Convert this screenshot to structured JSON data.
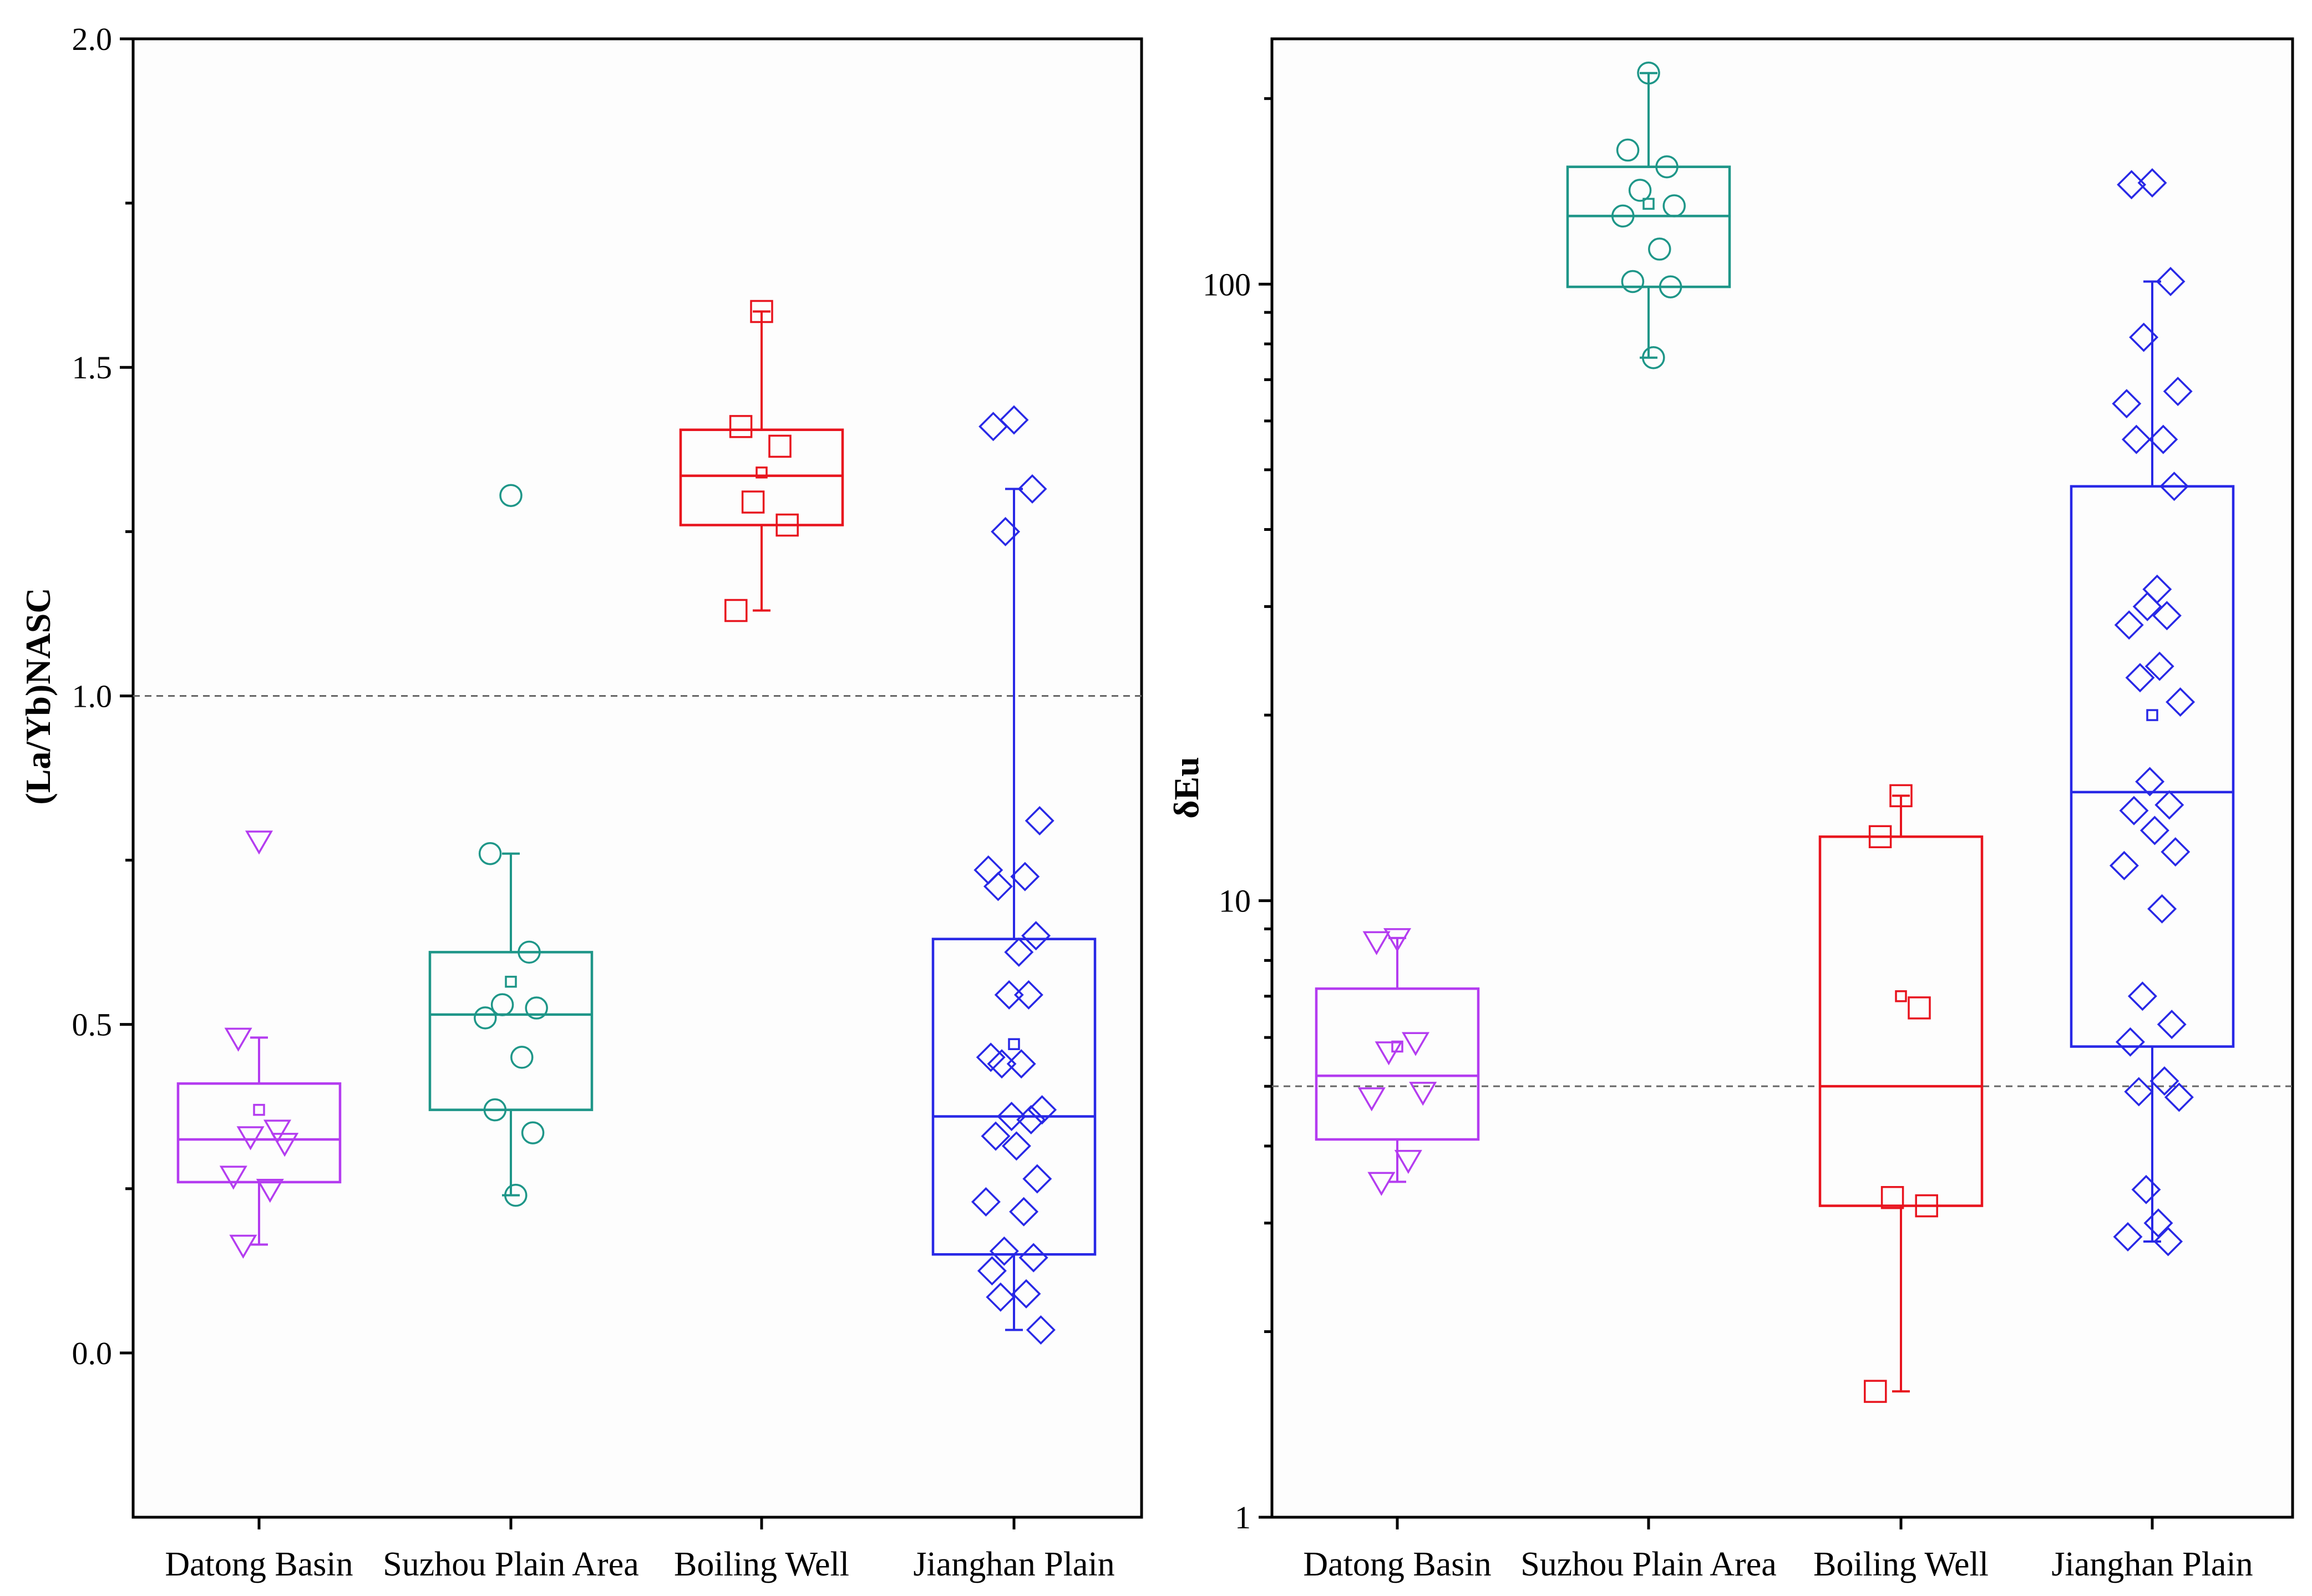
{
  "colors": {
    "Datong Basin": "#b43cf0",
    "Suzhou Plain Area": "#1e9688",
    "Boiling Well": "#e8141e",
    "Jianghan Plain": "#2828e6",
    "reference_line": "#666666"
  },
  "chart_data": [
    {
      "type": "box",
      "title": "",
      "xlabel": "",
      "ylabel": "(La/Yb)NASC",
      "yscale": "linear",
      "ylim": [
        -0.25,
        2.0
      ],
      "yticks": [
        0.0,
        0.5,
        1.0,
        1.5,
        2.0
      ],
      "ytick_labels": [
        "0.0",
        "0.5",
        "1.0",
        "1.5",
        "2.0"
      ],
      "reference_line": 1.0,
      "categories": [
        "Datong Basin",
        "Suzhou Plain Area",
        "Boiling Well",
        "Jianghan Plain"
      ],
      "groups": [
        {
          "name": "Datong Basin",
          "marker": "triangle-down",
          "box": {
            "q1": 0.26,
            "median": 0.325,
            "q3": 0.41,
            "whisker_low": 0.165,
            "whisker_high": 0.48,
            "mean": 0.37
          },
          "points": [
            0.78,
            0.48,
            0.34,
            0.33,
            0.32,
            0.27,
            0.25,
            0.165
          ]
        },
        {
          "name": "Suzhou Plain Area",
          "marker": "circle",
          "box": {
            "q1": 0.37,
            "median": 0.515,
            "q3": 0.61,
            "whisker_low": 0.24,
            "whisker_high": 0.76,
            "mean": 0.565
          },
          "points": [
            1.305,
            0.76,
            0.61,
            0.53,
            0.525,
            0.51,
            0.45,
            0.37,
            0.335,
            0.24
          ]
        },
        {
          "name": "Boiling Well",
          "marker": "square",
          "box": {
            "q1": 1.26,
            "median": 1.335,
            "q3": 1.405,
            "whisker_low": 1.13,
            "whisker_high": 1.585,
            "mean": 1.34
          },
          "points": [
            1.585,
            1.41,
            1.38,
            1.295,
            1.26,
            1.13
          ]
        },
        {
          "name": "Jianghan Plain",
          "marker": "diamond",
          "box": {
            "q1": 0.15,
            "median": 0.36,
            "q3": 0.63,
            "whisker_low": 0.035,
            "whisker_high": 1.315,
            "mean": 0.47
          },
          "points": [
            1.42,
            1.41,
            1.315,
            1.25,
            0.81,
            0.735,
            0.725,
            0.71,
            0.635,
            0.61,
            0.545,
            0.545,
            0.45,
            0.44,
            0.44,
            0.37,
            0.36,
            0.355,
            0.33,
            0.315,
            0.265,
            0.23,
            0.215,
            0.155,
            0.145,
            0.125,
            0.09,
            0.085,
            0.035
          ]
        }
      ]
    },
    {
      "type": "box",
      "title": "",
      "xlabel": "",
      "ylabel": "δEu",
      "yscale": "log",
      "ylim": [
        1,
        250
      ],
      "yticks": [
        1,
        10,
        100
      ],
      "ytick_labels": [
        "1",
        "10",
        "100"
      ],
      "minor_ticks": [
        2,
        3,
        4,
        5,
        6,
        7,
        8,
        9,
        20,
        30,
        40,
        50,
        60,
        70,
        80,
        90,
        200
      ],
      "reference_line": 5.0,
      "categories": [
        "Datong Basin",
        "Suzhou Plain Area",
        "Boiling Well",
        "Jianghan Plain"
      ],
      "groups": [
        {
          "name": "Datong Basin",
          "marker": "triangle-down",
          "box": {
            "q1": 4.1,
            "median": 5.2,
            "q3": 7.2,
            "whisker_low": 3.5,
            "whisker_high": 8.7,
            "mean": 5.8
          },
          "points": [
            8.7,
            8.6,
            5.9,
            5.7,
            4.9,
            4.8,
            3.8,
            3.5
          ]
        },
        {
          "name": "Suzhou Plain Area",
          "marker": "circle",
          "box": {
            "q1": 99,
            "median": 129,
            "q3": 155,
            "whisker_low": 76,
            "whisker_high": 220,
            "mean": 135
          },
          "points": [
            220,
            165,
            155,
            142,
            134,
            129,
            114,
            101,
            99,
            76
          ]
        },
        {
          "name": "Boiling Well",
          "marker": "square",
          "box": {
            "q1": 3.2,
            "median": 5.0,
            "q3": 12.7,
            "whisker_low": 1.6,
            "whisker_high": 14.8,
            "mean": 7.0
          },
          "points": [
            14.8,
            12.7,
            6.7,
            3.3,
            3.2,
            1.6
          ]
        },
        {
          "name": "Jianghan Plain",
          "marker": "diamond",
          "box": {
            "q1": 5.8,
            "median": 15,
            "q3": 47,
            "whisker_low": 2.8,
            "whisker_high": 101,
            "mean": 20
          },
          "points": [
            146,
            145,
            101,
            82,
            67,
            64,
            56,
            56,
            47,
            32,
            30,
            29,
            28,
            24,
            23,
            21,
            15.6,
            14.3,
            14,
            13,
            12,
            11.4,
            9.7,
            7,
            6.3,
            5.9,
            5.1,
            4.9,
            4.8,
            3.4,
            3,
            2.85,
            2.8
          ]
        }
      ]
    }
  ]
}
